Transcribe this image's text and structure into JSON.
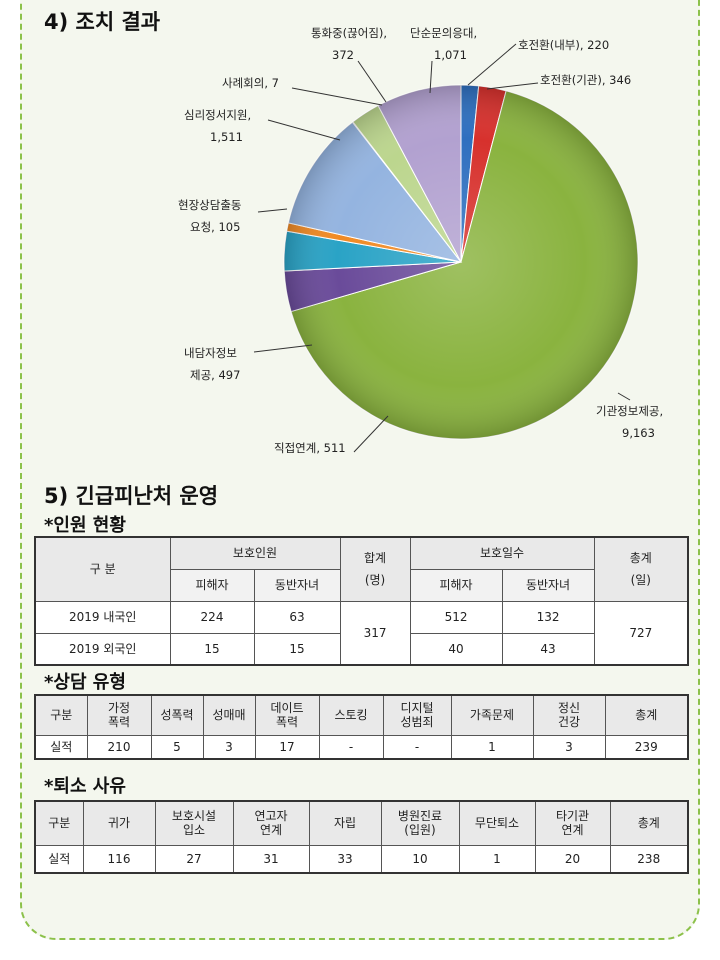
{
  "section4": {
    "title": "4) 조치 결과"
  },
  "chart_data": {
    "type": "pie",
    "title": "",
    "slices": [
      {
        "label": "호전환(내부)",
        "value": 220,
        "color": "#2e6fbf"
      },
      {
        "label": "호전환(기관)",
        "value": 346,
        "color": "#d7312d"
      },
      {
        "label": "기관정보제공",
        "value": 9163,
        "color": "#8ab33f"
      },
      {
        "label": "직접연계",
        "value": 511,
        "color": "#6a4b9a"
      },
      {
        "label": "내담자정보제공",
        "value": 497,
        "color": "#2aa3c6"
      },
      {
        "label": "현장상담출동요청",
        "value": 105,
        "color": "#f08a24"
      },
      {
        "label": "심리정서지원",
        "value": 1511,
        "color": "#94b4e0"
      },
      {
        "label": "사례회의",
        "value": 7,
        "color": "#c44a45"
      },
      {
        "label": "통화중(끊어짐)",
        "value": 372,
        "color": "#bcd68e"
      },
      {
        "label": "단순문의응대",
        "value": 1071,
        "color": "#b2a1d0"
      }
    ],
    "labels": {
      "l1": [
        "통화중(끊어짐),",
        "372"
      ],
      "l2": [
        "단순문의응대,",
        "1,071"
      ],
      "l3": [
        "호전환(내부), 220"
      ],
      "l4": [
        "호전환(기관), 346"
      ],
      "l5": [
        "사례회의, 7"
      ],
      "l6": [
        "심리정서지원,",
        "1,511"
      ],
      "l7": [
        "현장상담출동",
        "요청, 105"
      ],
      "l8": [
        "내담자정보",
        "제공, 497"
      ],
      "l9": [
        "기관정보제공,",
        "9,163"
      ],
      "l10": [
        "직접연계, 511"
      ]
    }
  },
  "section5": {
    "title": "5) 긴급피난처 운영"
  },
  "personnel": {
    "title": "*인원 현황",
    "h_category": "구 분",
    "h_protected": "보호인원",
    "h_total": [
      "합계",
      "(명)"
    ],
    "h_days": "보호일수",
    "h_grand": [
      "총계",
      "(일)"
    ],
    "h_victim": "피해자",
    "h_child": "동반자녀",
    "h_victim2": "피해자",
    "h_child2": "동반자녀",
    "rows": [
      {
        "label": "2019 내국인",
        "victim": "224",
        "child": "63",
        "dvictim": "512",
        "dchild": "132"
      },
      {
        "label": "2019 외국인",
        "victim": "15",
        "child": "15",
        "dvictim": "40",
        "dchild": "43"
      }
    ],
    "total": "317",
    "grand_total": "727"
  },
  "consult": {
    "title": "*상담 유형",
    "headers": [
      "구분",
      [
        "가정",
        "폭력"
      ],
      "성폭력",
      "성매매",
      [
        "데이트",
        "폭력"
      ],
      "스토킹",
      [
        "디지털",
        "성범죄"
      ],
      "가족문제",
      [
        "정신",
        "건강"
      ],
      "총계"
    ],
    "row": [
      "실적",
      "210",
      "5",
      "3",
      "17",
      "-",
      "-",
      "1",
      "3",
      "239"
    ]
  },
  "leave": {
    "title": "*퇴소 사유",
    "headers": [
      "구분",
      "귀가",
      [
        "보호시설",
        "입소"
      ],
      [
        "연고자",
        "연계"
      ],
      "자립",
      [
        "병원진료",
        "(입원)"
      ],
      "무단퇴소",
      [
        "타기관",
        "연계"
      ],
      "총계"
    ],
    "row": [
      "실적",
      "116",
      "27",
      "31",
      "33",
      "10",
      "1",
      "20",
      "238"
    ]
  }
}
